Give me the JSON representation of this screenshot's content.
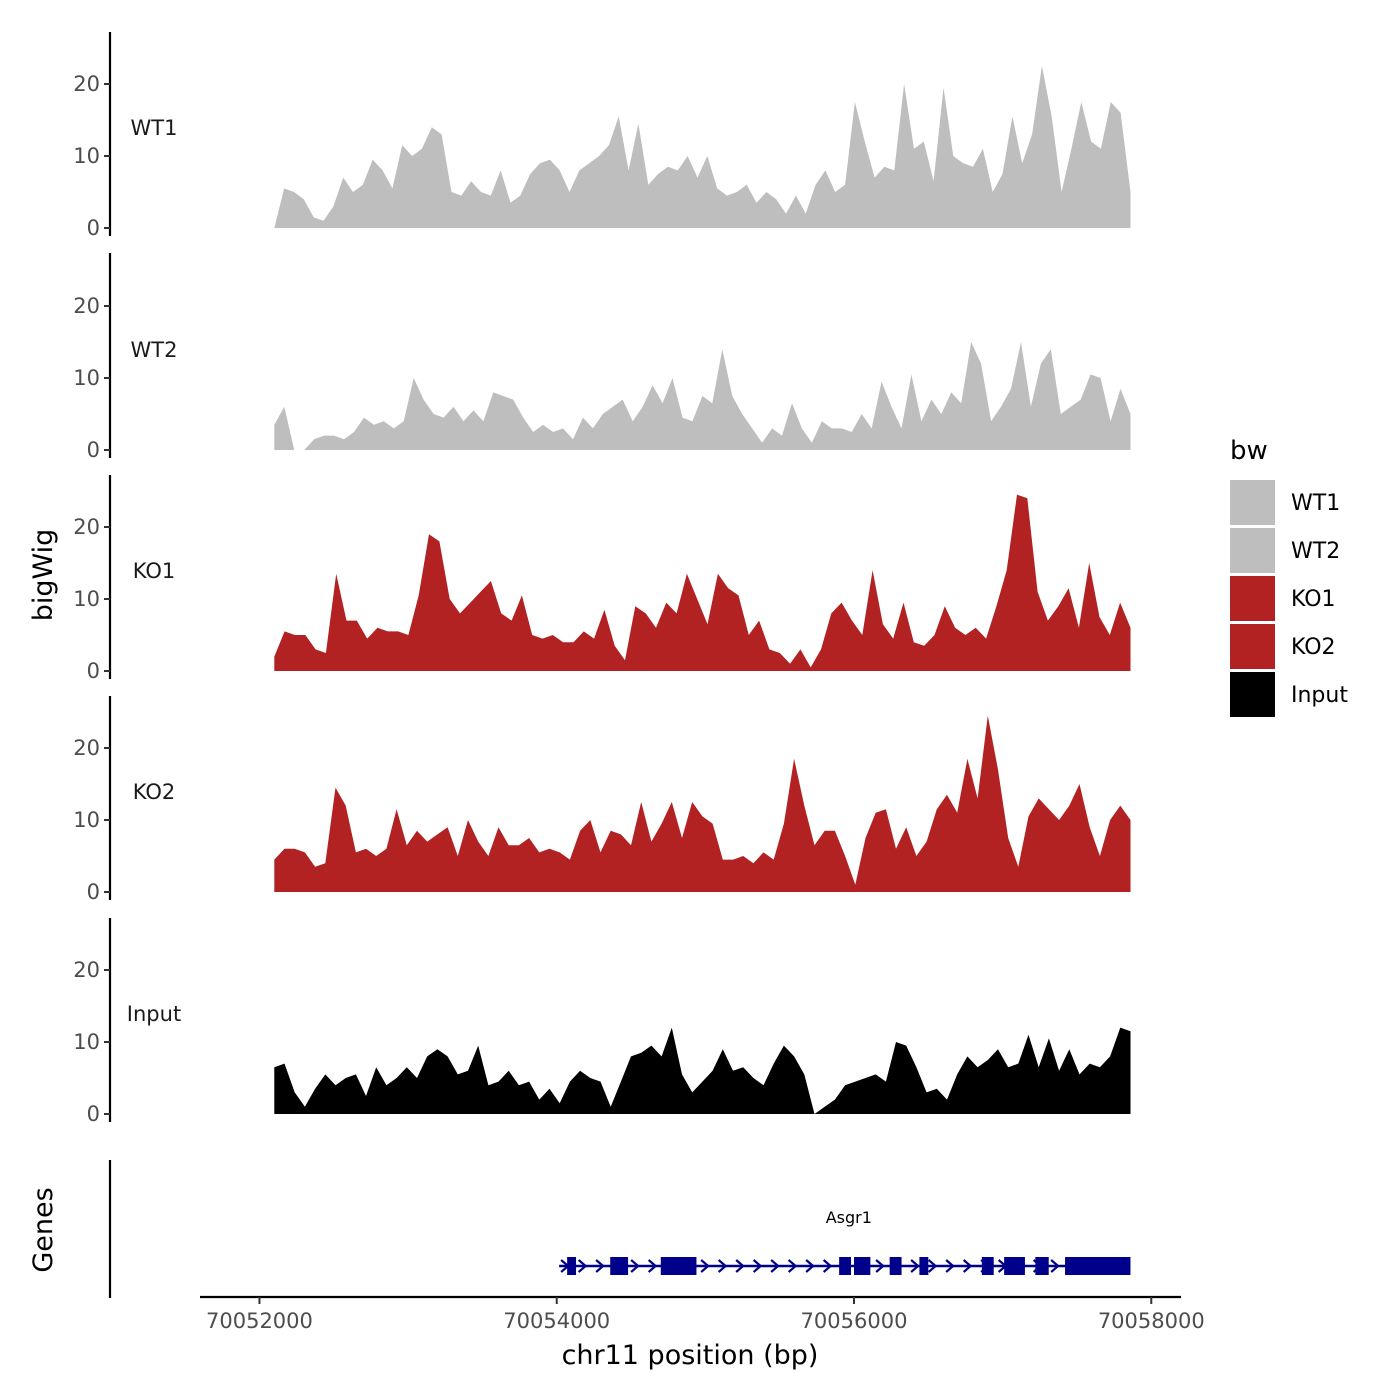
{
  "chart_data": {
    "type": "area",
    "chromosome": "chr11",
    "xlabel": "chr11 position (bp)",
    "ylabel_tracks": "bigWig",
    "ylabel_genes": "Genes",
    "xlim": [
      70051600,
      70058200
    ],
    "x_ticks": [
      70052000,
      70054000,
      70056000,
      70058000
    ],
    "x_tick_labels": [
      "70052000",
      "70054000",
      "70056000",
      "70058000"
    ],
    "ylim": [
      0,
      27
    ],
    "y_ticks": [
      0,
      10,
      20
    ],
    "y_tick_labels": [
      "0",
      "10",
      "20"
    ],
    "legend": {
      "title": "bw",
      "position": "right",
      "entries": [
        {
          "label": "WT1",
          "color": "#bebebe"
        },
        {
          "label": "WT2",
          "color": "#bebebe"
        },
        {
          "label": "KO1",
          "color": "#b22222"
        },
        {
          "label": "KO2",
          "color": "#b22222"
        },
        {
          "label": "Input",
          "color": "#000000"
        }
      ]
    },
    "x_start": 70052100,
    "x_end": 70057860,
    "series": [
      {
        "name": "WT1",
        "color": "#bebebe",
        "values": [
          0,
          5.5,
          5,
          4,
          1.5,
          1,
          3,
          7,
          5,
          6,
          9.5,
          8,
          5.5,
          11.5,
          10,
          11,
          14,
          13,
          5,
          4.5,
          6.5,
          5,
          4.5,
          8,
          3.5,
          4.5,
          7.5,
          9,
          9.5,
          8,
          5,
          8,
          9,
          10,
          11.5,
          15.5,
          8,
          14.5,
          6,
          7.5,
          8.5,
          8,
          10,
          7,
          10,
          5.5,
          4.5,
          5,
          6,
          3.5,
          5,
          4,
          2,
          4.5,
          2,
          6,
          8,
          5,
          6,
          17.5,
          12,
          7,
          8.5,
          8,
          20,
          11,
          12,
          6.5,
          19.5,
          10,
          9,
          8.5,
          11,
          5,
          7.5,
          15.5,
          9,
          13,
          22.5,
          15.5,
          5,
          11,
          17.5,
          12,
          11,
          17.5,
          16,
          5
        ]
      },
      {
        "name": "WT2",
        "color": "#bebebe",
        "values": [
          3.5,
          6,
          0,
          0,
          1.5,
          2,
          2,
          1.5,
          2.5,
          4.5,
          3.5,
          4,
          3,
          4,
          10,
          7,
          5,
          4.5,
          6,
          4,
          5.5,
          4,
          8,
          7.5,
          7,
          4.5,
          2.5,
          3.5,
          2.5,
          3,
          1.5,
          4.5,
          3,
          5,
          6,
          7,
          4,
          6,
          9,
          6.5,
          10,
          4.5,
          4,
          7.5,
          6.5,
          14,
          7.5,
          5,
          3,
          1,
          3,
          2,
          6.5,
          3,
          1,
          4,
          3,
          3,
          2.5,
          5,
          3,
          9.5,
          6,
          3,
          10.5,
          4,
          7,
          5,
          8,
          6.5,
          15,
          12,
          4,
          6,
          8.5,
          15,
          6,
          12,
          14,
          5,
          6,
          7,
          10.5,
          10,
          4,
          8.5,
          5
        ]
      },
      {
        "name": "KO1",
        "color": "#b22222",
        "values": [
          2,
          5.5,
          5,
          5,
          3,
          2.5,
          13.5,
          7,
          7,
          4.5,
          6,
          5.5,
          5.5,
          5,
          10.5,
          19,
          18,
          10,
          8,
          9.5,
          11,
          12.5,
          8,
          7,
          10.5,
          5,
          4.5,
          5,
          4,
          4,
          5.5,
          4.5,
          8.5,
          3.5,
          1.5,
          9,
          8,
          6,
          9.5,
          8,
          13.5,
          10,
          6.5,
          13.5,
          11.5,
          10.5,
          5,
          7,
          3,
          2.5,
          1,
          3,
          0.5,
          3,
          8,
          9.5,
          7,
          5,
          14,
          6.5,
          4.5,
          9.5,
          4,
          3.5,
          5,
          9,
          6,
          5,
          6,
          4.5,
          9,
          14,
          24.5,
          24,
          11,
          7,
          9,
          11.5,
          6,
          15,
          7.5,
          5,
          9.5,
          6
        ]
      },
      {
        "name": "KO2",
        "color": "#b22222",
        "values": [
          4.5,
          6,
          6,
          5.5,
          3.5,
          4,
          14.5,
          12,
          5.5,
          6,
          5,
          6,
          11.5,
          6.5,
          8.5,
          7,
          8,
          9,
          5,
          10,
          7,
          5,
          9,
          6.5,
          6.5,
          7.5,
          5.5,
          6,
          5.5,
          4.5,
          8.5,
          10,
          5.5,
          8.5,
          8,
          6.5,
          12.5,
          7,
          9.5,
          12.5,
          7.5,
          12.5,
          10.5,
          9.5,
          4.5,
          4.5,
          5,
          4,
          5.5,
          4.5,
          9.5,
          18.5,
          12,
          6.5,
          8.5,
          8.5,
          5,
          1,
          7.5,
          11,
          11.5,
          6,
          9,
          5,
          7,
          11.5,
          13.5,
          11,
          18.5,
          13,
          24.5,
          17,
          7.5,
          3.5,
          10.5,
          13,
          11.5,
          10,
          12,
          15,
          9,
          5,
          10,
          12,
          10
        ]
      },
      {
        "name": "Input",
        "color": "#000000",
        "values": [
          6.5,
          7,
          3,
          1,
          3.5,
          5.5,
          4,
          5,
          5.5,
          2.5,
          6.5,
          4,
          5,
          6.5,
          5,
          8,
          9,
          8,
          5.5,
          6,
          9.5,
          4,
          4.5,
          6,
          4,
          4.5,
          2,
          3.5,
          1.5,
          4.5,
          6,
          5,
          4.5,
          1,
          4.5,
          8,
          8.5,
          9.5,
          8,
          12,
          5.5,
          3,
          4.5,
          6,
          9,
          6,
          6.5,
          5,
          4,
          7,
          9.5,
          8,
          5.5,
          0,
          1,
          2,
          4,
          4.5,
          5,
          5.5,
          4.5,
          10,
          9.5,
          6.5,
          3,
          3.5,
          2,
          5.5,
          8,
          6.5,
          7.5,
          9,
          6.5,
          7,
          11,
          6.5,
          10.5,
          6,
          9,
          5.5,
          7,
          6.5,
          8,
          12,
          11.5
        ]
      }
    ],
    "genes": [
      {
        "name": "Asgr1",
        "strand": "+",
        "color": "#00008b",
        "start": 70054070,
        "end": 70057860,
        "exons": [
          [
            70054070,
            70054130
          ],
          [
            70054360,
            70054480
          ],
          [
            70054700,
            70054940
          ],
          [
            70055900,
            70055980
          ],
          [
            70056000,
            70056110
          ],
          [
            70056240,
            70056320
          ],
          [
            70056440,
            70056500
          ],
          [
            70056860,
            70056940
          ],
          [
            70057010,
            70057150
          ],
          [
            70057220,
            70057310
          ],
          [
            70057420,
            70057860
          ]
        ]
      }
    ]
  }
}
